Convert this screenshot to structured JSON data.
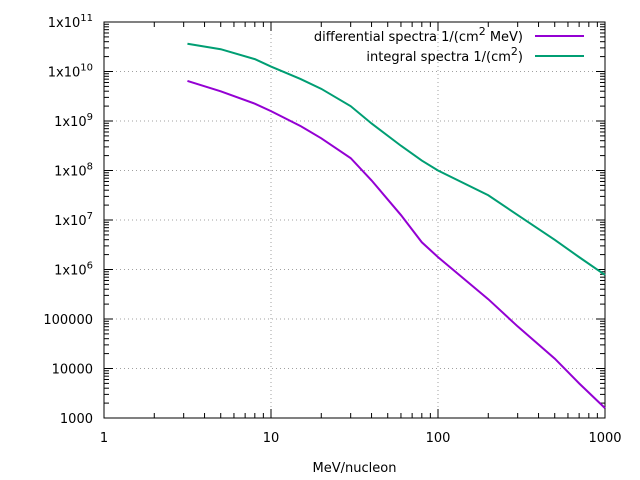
{
  "chart_data": {
    "type": "line",
    "title": "",
    "xlabel": "MeV/nucleon",
    "ylabel": "",
    "xscale": "log",
    "yscale": "log",
    "xlim": [
      1,
      1000
    ],
    "ylim": [
      1000,
      100000000000
    ],
    "grid": true,
    "legend_position": "top-right",
    "x_ticks": [
      {
        "v": 1,
        "label": "1"
      },
      {
        "v": 10,
        "label": "10"
      },
      {
        "v": 100,
        "label": "100"
      },
      {
        "v": 1000,
        "label": "1000"
      }
    ],
    "y_ticks": [
      {
        "v": 11,
        "base": "1x10",
        "exp": "11"
      },
      {
        "v": 10,
        "base": "1x10",
        "exp": "10"
      },
      {
        "v": 9,
        "base": "1x10",
        "exp": "9"
      },
      {
        "v": 8,
        "base": "1x10",
        "exp": "8"
      },
      {
        "v": 7,
        "base": "1x10",
        "exp": "7"
      },
      {
        "v": 6,
        "base": "1x10",
        "exp": "6"
      },
      {
        "v": 5,
        "base": "100000",
        "exp": ""
      },
      {
        "v": 4,
        "base": "10000",
        "exp": ""
      },
      {
        "v": 3,
        "base": "1000",
        "exp": ""
      }
    ],
    "series": [
      {
        "name": "differential spectra 1/(cm",
        "sup": "2",
        "name_end": " MeV)",
        "color": "#9400d3",
        "x": [
          3.16,
          5,
          8,
          10,
          15,
          20,
          30,
          40,
          60,
          80,
          100,
          200,
          300,
          500,
          700,
          1000
        ],
        "log10_y": [
          9.81,
          9.6,
          9.35,
          9.2,
          8.9,
          8.65,
          8.25,
          7.8,
          7.1,
          6.55,
          6.25,
          5.4,
          4.85,
          4.2,
          3.7,
          3.2
        ]
      },
      {
        "name": "integral spectra 1/(cm",
        "sup": "2",
        "name_end": ")",
        "color": "#009e73",
        "x": [
          3.16,
          5,
          8,
          10,
          15,
          20,
          30,
          40,
          60,
          80,
          100,
          200,
          300,
          500,
          700,
          1000
        ],
        "log10_y": [
          10.56,
          10.45,
          10.25,
          10.1,
          9.85,
          9.65,
          9.3,
          8.95,
          8.5,
          8.2,
          8.0,
          7.5,
          7.1,
          6.6,
          6.25,
          5.89
        ]
      }
    ]
  }
}
